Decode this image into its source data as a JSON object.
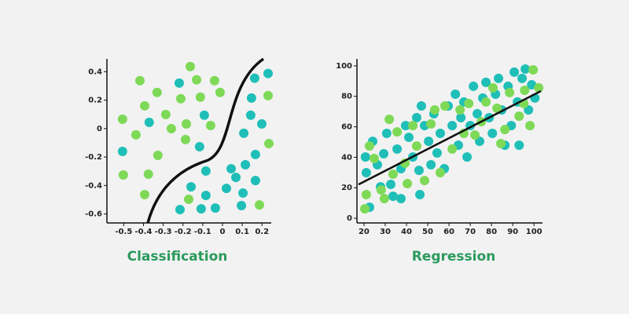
{
  "chart_data": [
    {
      "type": "scatter",
      "title": "Classification",
      "xlim": [
        -0.585,
        0.247
      ],
      "ylim": [
        -0.663,
        0.49
      ],
      "xticks": [
        -0.5,
        -0.4,
        -0.3,
        -0.2,
        -0.1,
        0,
        0.1,
        0.2
      ],
      "yticks": [
        0.4,
        0.2,
        0,
        -0.2,
        -0.4,
        -0.6
      ],
      "series": [
        {
          "color": "#7ed957",
          "x": [
            -0.506,
            -0.418,
            -0.394,
            -0.331,
            -0.287,
            -0.259,
            -0.183,
            -0.211,
            -0.163,
            -0.131,
            -0.112,
            -0.04,
            -0.012,
            -0.06,
            -0.187,
            -0.327,
            -0.375,
            -0.502,
            -0.394,
            -0.171,
            0.235,
            0.231,
            0.187,
            -0.438
          ],
          "values": [
            0.066,
            0.337,
            0.16,
            0.254,
            0.099,
            0,
            0.033,
            0.21,
            0.436,
            0.343,
            0.221,
            0.337,
            0.254,
            0.022,
            -0.077,
            -0.188,
            -0.32,
            -0.326,
            -0.464,
            -0.497,
            -0.105,
            0.232,
            -0.536,
            -0.044
          ]
        },
        {
          "color": "#1fbfb8",
          "x": [
            -0.371,
            -0.219,
            -0.092,
            -0.116,
            -0.506,
            -0.084,
            -0.159,
            -0.215,
            -0.108,
            -0.036,
            -0.084,
            0.02,
            0.044,
            0.068,
            0.116,
            0.167,
            0.096,
            0.104,
            0.167,
            0.108,
            0.143,
            0.199,
            0.163,
            0.231,
            0.147
          ],
          "values": [
            0.044,
            0.32,
            0.094,
            -0.127,
            -0.16,
            -0.298,
            -0.409,
            -0.569,
            -0.564,
            -0.558,
            -0.47,
            -0.42,
            -0.282,
            -0.343,
            -0.254,
            -0.182,
            -0.541,
            -0.453,
            -0.365,
            -0.033,
            0.094,
            0.033,
            0.354,
            0.387,
            0.215
          ]
        }
      ]
    },
    {
      "type": "scatter",
      "title": "Regression",
      "xlim": [
        16.7,
        104
      ],
      "ylim": [
        -3.1,
        104.6
      ],
      "xticks": [
        20,
        30,
        40,
        50,
        60,
        70,
        80,
        90,
        100
      ],
      "yticks": [
        100,
        80,
        60,
        40,
        20,
        0
      ],
      "series": [
        {
          "color": "#1fbfb8",
          "x": [
            20.7,
            21.1,
            24.1,
            26.3,
            27.8,
            29.3,
            30.7,
            32.6,
            33.7,
            35.6,
            37.4,
            39.6,
            41.1,
            43.0,
            44.8,
            45.9,
            47.0,
            48.5,
            50.4,
            51.5,
            52.9,
            54.4,
            55.9,
            57.8,
            59.6,
            61.5,
            63.0,
            64.4,
            65.6,
            67.0,
            68.5,
            70.0,
            71.5,
            73.3,
            74.4,
            75.9,
            77.4,
            78.9,
            80.4,
            81.9,
            83.3,
            84.8,
            86.3,
            87.8,
            89.3,
            90.7,
            92.2,
            93.0,
            94.4,
            95.9,
            97.4,
            98.9,
            100.4,
            22.6,
            37.4,
            46.3
          ],
          "values": [
            40.2,
            29.9,
            50.5,
            35.1,
            20.6,
            42.3,
            55.7,
            22.2,
            14.4,
            45.4,
            32.5,
            60.8,
            53.1,
            40.2,
            66.0,
            31.4,
            73.7,
            60.8,
            50.5,
            35.1,
            68.6,
            42.8,
            55.7,
            32.5,
            73.7,
            60.8,
            81.4,
            47.9,
            66.0,
            76.3,
            40.2,
            60.8,
            86.6,
            68.6,
            50.5,
            78.9,
            89.2,
            66.0,
            55.7,
            81.4,
            91.8,
            71.1,
            47.9,
            86.6,
            60.8,
            95.9,
            76.3,
            47.9,
            91.8,
            97.9,
            71.1,
            87.6,
            78.9,
            7.2,
            12.9,
            15.5
          ]
        },
        {
          "color": "#7ed957",
          "x": [
            20.4,
            21.1,
            22.6,
            24.8,
            28.1,
            29.6,
            31.9,
            33.7,
            35.6,
            39.3,
            40.4,
            43.0,
            44.8,
            48.5,
            51.5,
            53.3,
            55.9,
            58.1,
            61.5,
            65.2,
            67.0,
            69.3,
            72.2,
            75.2,
            77.4,
            80.7,
            82.6,
            84.4,
            86.3,
            88.5,
            93.0,
            95.6,
            98.1,
            99.6,
            102.2,
            95.2
          ],
          "values": [
            6.2,
            15.5,
            47.4,
            39.2,
            18.6,
            12.9,
            64.9,
            28.9,
            56.7,
            36.1,
            22.7,
            60.8,
            47.4,
            24.7,
            61.9,
            71.1,
            29.9,
            73.7,
            45.4,
            71.1,
            55.7,
            75.3,
            54.6,
            63.4,
            76.3,
            85.6,
            72.2,
            49.0,
            58.2,
            82.5,
            67.0,
            84.0,
            60.8,
            97.4,
            85.6,
            75.3
          ]
        }
      ]
    }
  ]
}
